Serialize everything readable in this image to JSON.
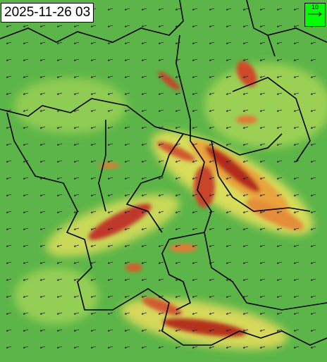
{
  "header": {
    "timestamp": "2025-11-26 03"
  },
  "legend": {
    "scale_label": "10"
  }
}
